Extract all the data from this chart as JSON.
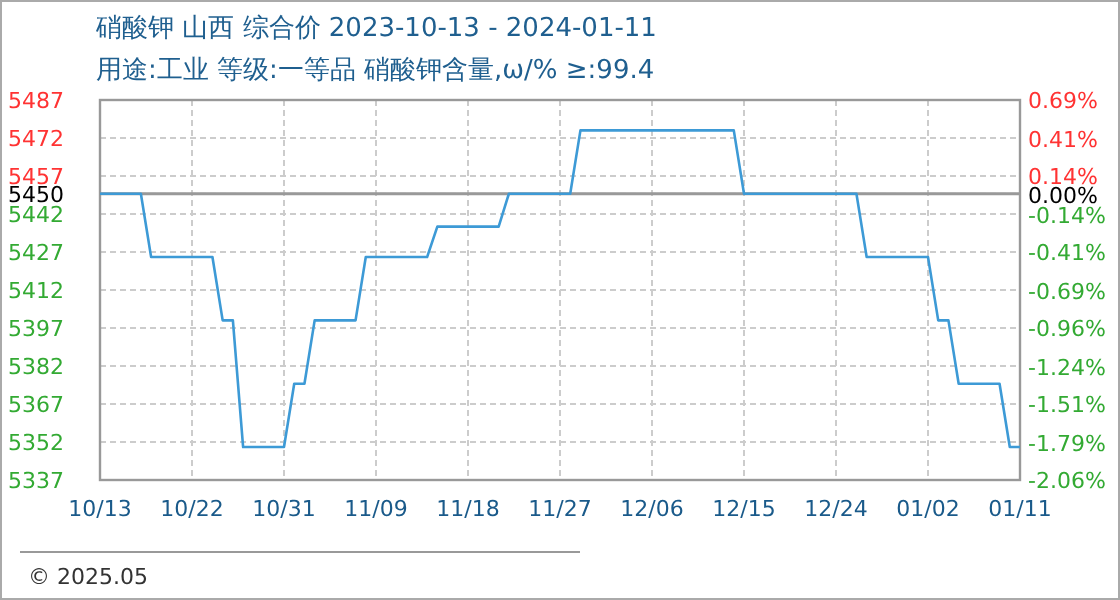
{
  "chart_data": {
    "type": "line",
    "title": "硝酸钾 山西 综合价 2023-10-13 - 2024-01-11",
    "subtitle": "用途:工业 等级:一等品 硝酸钾含量,ω/% ≥:99.4",
    "x": [
      "2023-10-13",
      "2023-10-17",
      "2023-10-18",
      "2023-10-24",
      "2023-10-25",
      "2023-10-26",
      "2023-10-27",
      "2023-10-31",
      "2023-11-01",
      "2023-11-02",
      "2023-11-03",
      "2023-11-07",
      "2023-11-08",
      "2023-11-14",
      "2023-11-15",
      "2023-11-21",
      "2023-11-22",
      "2023-11-28",
      "2023-11-29",
      "2023-12-14",
      "2023-12-15",
      "2023-12-26",
      "2023-12-27",
      "2024-01-02",
      "2024-01-03",
      "2024-01-04",
      "2024-01-05",
      "2024-01-09",
      "2024-01-10",
      "2024-01-11"
    ],
    "series": [
      {
        "color": "#3d9ad6",
        "values": [
          5450,
          5450,
          5425,
          5425,
          5400,
          5400,
          5350,
          5350,
          5375,
          5375,
          5400,
          5400,
          5425,
          5425,
          5437,
          5437,
          5450,
          5450,
          5475,
          5475,
          5450,
          5450,
          5425,
          5425,
          5400,
          5400,
          5375,
          5375,
          5350,
          5350
        ]
      }
    ],
    "xlim": [
      "2023-10-13",
      "2024-01-11"
    ],
    "xticks": [
      {
        "value": "2023-10-13",
        "label": "10/13"
      },
      {
        "value": "2023-10-22",
        "label": "10/22"
      },
      {
        "value": "2023-10-31",
        "label": "10/31"
      },
      {
        "value": "2023-11-09",
        "label": "11/09"
      },
      {
        "value": "2023-11-18",
        "label": "11/18"
      },
      {
        "value": "2023-11-27",
        "label": "11/27"
      },
      {
        "value": "2023-12-06",
        "label": "12/06"
      },
      {
        "value": "2023-12-15",
        "label": "12/15"
      },
      {
        "value": "2023-12-24",
        "label": "12/24"
      },
      {
        "value": "2024-01-02",
        "label": "01/02"
      },
      {
        "value": "2024-01-11",
        "label": "01/11"
      }
    ],
    "ylim": [
      5337,
      5487
    ],
    "yticks": [
      5337,
      5352,
      5367,
      5382,
      5397,
      5412,
      5427,
      5442,
      5450,
      5457,
      5472,
      5487
    ],
    "y2lim": [
      -2.06,
      0.69
    ],
    "y2ticks": [
      {
        "value": -2.06,
        "label": "-2.06%"
      },
      {
        "value": -1.79,
        "label": "-1.79%"
      },
      {
        "value": -1.51,
        "label": "-1.51%"
      },
      {
        "value": -1.24,
        "label": "-1.24%"
      },
      {
        "value": -0.96,
        "label": "-0.96%"
      },
      {
        "value": -0.69,
        "label": "-0.69%"
      },
      {
        "value": -0.41,
        "label": "-0.41%"
      },
      {
        "value": -0.14,
        "label": "-0.14%"
      },
      {
        "value": 0,
        "label": "0.00%"
      },
      {
        "value": 0.14,
        "label": "0.14%"
      },
      {
        "value": 0.41,
        "label": "0.41%"
      },
      {
        "value": 0.69,
        "label": "0.69%"
      }
    ],
    "ref_lines": [
      {
        "axis": "y",
        "value": 5450,
        "color": "#999999"
      }
    ],
    "grid": true,
    "marker": "none",
    "line_style": "solid",
    "annotations": [
      "© 2025.05"
    ]
  }
}
